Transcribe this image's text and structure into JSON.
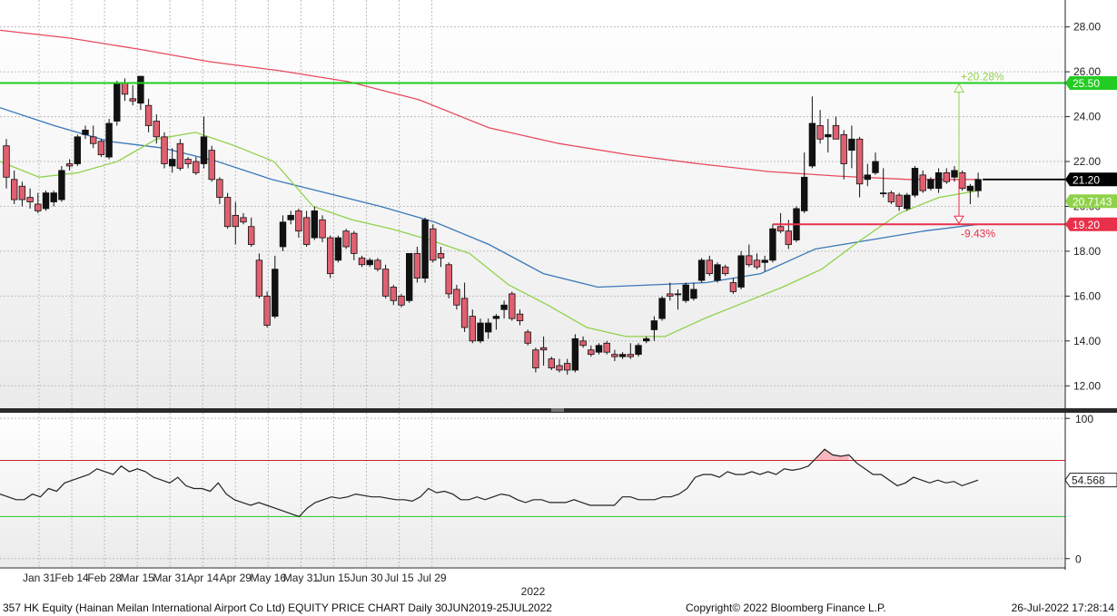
{
  "footer": {
    "description": "357 HK Equity (Hainan Meilan International Airport Co Ltd) EQUITY PRICE CHART  Daily 30JUN2019-25JUL2022",
    "copyright": "Copyright© 2022 Bloomberg Finance L.P.",
    "timestamp": "26-Jul-2022 17:28:14"
  },
  "colors": {
    "up_candle": "#111111",
    "down_candle": "#e06070",
    "ma_short": "#8fd24a",
    "ma_mid": "#3a78b8",
    "ma_long": "#e84a5f",
    "resistance": "#22cc22",
    "support": "#e8304a",
    "last_price": "#000000",
    "rsi_line": "#222222",
    "rsi_upper": "#cc2222",
    "rsi_lower": "#22cc22"
  },
  "chart_data": [
    {
      "type": "candlestick",
      "symbol": "357 HK Equity",
      "period": "Daily",
      "x_tick_labels": [
        "Jan 31",
        "Feb 14",
        "Feb 28",
        "Mar 15",
        "Mar 31",
        "Apr 14",
        "Apr 29",
        "May 16",
        "May 31",
        "Jun 15",
        "Jun 30",
        "Jul 15",
        "Jul 29"
      ],
      "year_label": "2022",
      "y_ticks": [
        "12.00",
        "14.00",
        "16.00",
        "18.00",
        "20.00",
        "22.00",
        "24.00",
        "26.00",
        "28.00"
      ],
      "ylim": [
        11.0,
        29.2
      ],
      "grid": true,
      "candles": [
        {
          "o": 22.7,
          "h": 23.0,
          "l": 20.8,
          "c": 21.3
        },
        {
          "o": 21.2,
          "h": 21.6,
          "l": 20.1,
          "c": 20.3
        },
        {
          "o": 20.9,
          "h": 21.1,
          "l": 20.0,
          "c": 20.3
        },
        {
          "o": 20.4,
          "h": 20.8,
          "l": 19.9,
          "c": 20.2
        },
        {
          "o": 20.1,
          "h": 20.6,
          "l": 19.7,
          "c": 19.8
        },
        {
          "o": 19.9,
          "h": 20.7,
          "l": 19.8,
          "c": 20.6
        },
        {
          "o": 20.2,
          "h": 20.7,
          "l": 20.0,
          "c": 20.6
        },
        {
          "o": 20.3,
          "h": 21.8,
          "l": 20.2,
          "c": 21.6
        },
        {
          "o": 21.9,
          "h": 22.1,
          "l": 21.6,
          "c": 21.8
        },
        {
          "o": 21.9,
          "h": 23.2,
          "l": 21.8,
          "c": 23.1
        },
        {
          "o": 23.2,
          "h": 23.6,
          "l": 23.0,
          "c": 23.4
        },
        {
          "o": 23.1,
          "h": 23.6,
          "l": 22.6,
          "c": 22.8
        },
        {
          "o": 22.9,
          "h": 23.0,
          "l": 22.2,
          "c": 22.3
        },
        {
          "o": 22.2,
          "h": 23.9,
          "l": 22.1,
          "c": 23.7
        },
        {
          "o": 23.8,
          "h": 25.6,
          "l": 23.6,
          "c": 25.5
        },
        {
          "o": 25.5,
          "h": 25.7,
          "l": 24.7,
          "c": 25.0
        },
        {
          "o": 24.8,
          "h": 25.4,
          "l": 24.5,
          "c": 24.7
        },
        {
          "o": 24.6,
          "h": 25.8,
          "l": 24.3,
          "c": 25.8
        },
        {
          "o": 24.5,
          "h": 24.8,
          "l": 23.3,
          "c": 23.6
        },
        {
          "o": 23.8,
          "h": 24.1,
          "l": 22.8,
          "c": 23.1
        },
        {
          "o": 23.1,
          "h": 23.3,
          "l": 21.7,
          "c": 21.9
        },
        {
          "o": 21.8,
          "h": 22.6,
          "l": 21.5,
          "c": 22.1
        },
        {
          "o": 22.8,
          "h": 23.0,
          "l": 21.6,
          "c": 21.7
        },
        {
          "o": 22.1,
          "h": 22.2,
          "l": 21.7,
          "c": 21.9
        },
        {
          "o": 22.0,
          "h": 22.2,
          "l": 21.4,
          "c": 21.5
        },
        {
          "o": 21.9,
          "h": 24.0,
          "l": 21.7,
          "c": 23.1
        },
        {
          "o": 22.5,
          "h": 22.7,
          "l": 21.1,
          "c": 21.2
        },
        {
          "o": 21.2,
          "h": 21.3,
          "l": 20.1,
          "c": 20.4
        },
        {
          "o": 20.4,
          "h": 20.6,
          "l": 19.0,
          "c": 19.1
        },
        {
          "o": 19.6,
          "h": 20.2,
          "l": 18.3,
          "c": 19.1
        },
        {
          "o": 19.5,
          "h": 19.7,
          "l": 19.2,
          "c": 19.3
        },
        {
          "o": 19.1,
          "h": 19.5,
          "l": 18.2,
          "c": 18.3
        },
        {
          "o": 17.6,
          "h": 17.9,
          "l": 15.9,
          "c": 16.0
        },
        {
          "o": 16.0,
          "h": 16.2,
          "l": 14.6,
          "c": 14.7
        },
        {
          "o": 15.1,
          "h": 17.8,
          "l": 15.0,
          "c": 17.2
        },
        {
          "o": 18.2,
          "h": 19.6,
          "l": 18.0,
          "c": 19.3
        },
        {
          "o": 19.4,
          "h": 19.8,
          "l": 19.2,
          "c": 19.6
        },
        {
          "o": 19.8,
          "h": 19.9,
          "l": 18.6,
          "c": 18.9
        },
        {
          "o": 19.5,
          "h": 19.8,
          "l": 18.2,
          "c": 18.3
        },
        {
          "o": 18.6,
          "h": 20.0,
          "l": 18.5,
          "c": 19.8
        },
        {
          "o": 19.4,
          "h": 19.6,
          "l": 18.4,
          "c": 18.6
        },
        {
          "o": 18.6,
          "h": 18.7,
          "l": 16.8,
          "c": 17.0
        },
        {
          "o": 17.6,
          "h": 18.7,
          "l": 17.5,
          "c": 18.6
        },
        {
          "o": 18.9,
          "h": 19.0,
          "l": 18.1,
          "c": 18.2
        },
        {
          "o": 18.8,
          "h": 18.9,
          "l": 17.6,
          "c": 17.9
        },
        {
          "o": 17.7,
          "h": 17.8,
          "l": 17.3,
          "c": 17.4
        },
        {
          "o": 17.4,
          "h": 17.7,
          "l": 17.3,
          "c": 17.6
        },
        {
          "o": 17.6,
          "h": 17.7,
          "l": 17.1,
          "c": 17.2
        },
        {
          "o": 17.2,
          "h": 17.4,
          "l": 15.9,
          "c": 16.0
        },
        {
          "o": 16.4,
          "h": 16.5,
          "l": 15.6,
          "c": 15.8
        },
        {
          "o": 16.0,
          "h": 16.1,
          "l": 15.5,
          "c": 15.6
        },
        {
          "o": 15.8,
          "h": 17.9,
          "l": 15.7,
          "c": 17.9
        },
        {
          "o": 17.9,
          "h": 18.2,
          "l": 16.6,
          "c": 16.8
        },
        {
          "o": 16.8,
          "h": 19.5,
          "l": 16.6,
          "c": 19.4
        },
        {
          "o": 19.0,
          "h": 19.2,
          "l": 17.5,
          "c": 17.6
        },
        {
          "o": 17.9,
          "h": 18.2,
          "l": 17.3,
          "c": 17.7
        },
        {
          "o": 17.4,
          "h": 17.5,
          "l": 15.9,
          "c": 16.1
        },
        {
          "o": 16.3,
          "h": 16.5,
          "l": 15.4,
          "c": 15.6
        },
        {
          "o": 15.9,
          "h": 16.6,
          "l": 14.4,
          "c": 14.6
        },
        {
          "o": 15.1,
          "h": 15.4,
          "l": 13.9,
          "c": 14.0
        },
        {
          "o": 14.0,
          "h": 15.0,
          "l": 13.9,
          "c": 14.8
        },
        {
          "o": 14.4,
          "h": 15.0,
          "l": 14.1,
          "c": 14.8
        },
        {
          "o": 15.0,
          "h": 15.2,
          "l": 14.5,
          "c": 15.1
        },
        {
          "o": 15.4,
          "h": 15.8,
          "l": 15.0,
          "c": 15.6
        },
        {
          "o": 16.1,
          "h": 16.2,
          "l": 14.9,
          "c": 15.0
        },
        {
          "o": 15.2,
          "h": 15.4,
          "l": 14.7,
          "c": 14.9
        },
        {
          "o": 14.4,
          "h": 14.5,
          "l": 13.8,
          "c": 13.9
        },
        {
          "o": 13.6,
          "h": 13.7,
          "l": 12.6,
          "c": 12.8
        },
        {
          "o": 13.7,
          "h": 14.2,
          "l": 12.9,
          "c": 13.6
        },
        {
          "o": 13.2,
          "h": 13.3,
          "l": 12.7,
          "c": 12.8
        },
        {
          "o": 12.9,
          "h": 13.2,
          "l": 12.6,
          "c": 12.7
        },
        {
          "o": 13.0,
          "h": 13.2,
          "l": 12.5,
          "c": 12.7
        },
        {
          "o": 12.7,
          "h": 14.3,
          "l": 12.6,
          "c": 14.1
        },
        {
          "o": 14.0,
          "h": 14.2,
          "l": 13.7,
          "c": 13.8
        },
        {
          "o": 13.6,
          "h": 13.8,
          "l": 13.3,
          "c": 13.4
        },
        {
          "o": 13.5,
          "h": 13.9,
          "l": 13.4,
          "c": 13.8
        },
        {
          "o": 13.9,
          "h": 14.0,
          "l": 13.4,
          "c": 13.5
        },
        {
          "o": 13.4,
          "h": 13.6,
          "l": 13.1,
          "c": 13.3
        },
        {
          "o": 13.3,
          "h": 13.5,
          "l": 13.2,
          "c": 13.4
        },
        {
          "o": 13.4,
          "h": 13.9,
          "l": 13.2,
          "c": 13.3
        },
        {
          "o": 13.4,
          "h": 13.9,
          "l": 13.3,
          "c": 13.8
        },
        {
          "o": 14.0,
          "h": 14.2,
          "l": 13.9,
          "c": 14.1
        },
        {
          "o": 14.5,
          "h": 15.1,
          "l": 14.0,
          "c": 14.9
        },
        {
          "o": 15.0,
          "h": 16.0,
          "l": 14.9,
          "c": 15.9
        },
        {
          "o": 16.1,
          "h": 16.6,
          "l": 15.8,
          "c": 16.0
        },
        {
          "o": 16.1,
          "h": 16.3,
          "l": 15.4,
          "c": 16.1
        },
        {
          "o": 15.8,
          "h": 16.6,
          "l": 15.7,
          "c": 16.5
        },
        {
          "o": 15.9,
          "h": 16.6,
          "l": 15.8,
          "c": 16.3
        },
        {
          "o": 16.7,
          "h": 17.7,
          "l": 16.6,
          "c": 17.6
        },
        {
          "o": 17.6,
          "h": 17.8,
          "l": 16.9,
          "c": 17.0
        },
        {
          "o": 16.7,
          "h": 17.5,
          "l": 16.6,
          "c": 17.4
        },
        {
          "o": 17.3,
          "h": 17.4,
          "l": 16.9,
          "c": 17.0
        },
        {
          "o": 16.6,
          "h": 16.8,
          "l": 16.1,
          "c": 16.2
        },
        {
          "o": 16.4,
          "h": 18.0,
          "l": 16.3,
          "c": 17.8
        },
        {
          "o": 17.8,
          "h": 18.3,
          "l": 17.3,
          "c": 17.4
        },
        {
          "o": 17.6,
          "h": 17.9,
          "l": 17.2,
          "c": 17.3
        },
        {
          "o": 17.5,
          "h": 17.8,
          "l": 17.1,
          "c": 17.6
        },
        {
          "o": 17.6,
          "h": 19.2,
          "l": 17.5,
          "c": 19.0
        },
        {
          "o": 19.1,
          "h": 19.7,
          "l": 18.8,
          "c": 18.9
        },
        {
          "o": 18.9,
          "h": 19.4,
          "l": 18.1,
          "c": 18.3
        },
        {
          "o": 18.5,
          "h": 20.0,
          "l": 18.4,
          "c": 19.9
        },
        {
          "o": 19.8,
          "h": 22.4,
          "l": 19.7,
          "c": 21.3
        },
        {
          "o": 21.8,
          "h": 24.9,
          "l": 21.7,
          "c": 23.7
        },
        {
          "o": 23.6,
          "h": 24.3,
          "l": 22.8,
          "c": 23.0
        },
        {
          "o": 23.1,
          "h": 23.9,
          "l": 22.4,
          "c": 23.2
        },
        {
          "o": 23.6,
          "h": 24.0,
          "l": 23.0,
          "c": 23.0
        },
        {
          "o": 23.2,
          "h": 23.4,
          "l": 21.2,
          "c": 21.9
        },
        {
          "o": 22.5,
          "h": 23.6,
          "l": 21.7,
          "c": 23.0
        },
        {
          "o": 23.0,
          "h": 23.1,
          "l": 20.4,
          "c": 21.0
        },
        {
          "o": 21.2,
          "h": 21.9,
          "l": 20.9,
          "c": 21.4
        },
        {
          "o": 21.5,
          "h": 22.4,
          "l": 21.4,
          "c": 22.0
        },
        {
          "o": 20.6,
          "h": 21.7,
          "l": 20.4,
          "c": 20.6
        },
        {
          "o": 20.6,
          "h": 20.7,
          "l": 20.1,
          "c": 20.2
        },
        {
          "o": 20.5,
          "h": 20.6,
          "l": 19.8,
          "c": 20.0
        },
        {
          "o": 19.9,
          "h": 20.6,
          "l": 19.8,
          "c": 20.5
        },
        {
          "o": 20.5,
          "h": 21.8,
          "l": 20.4,
          "c": 21.7
        },
        {
          "o": 21.4,
          "h": 21.6,
          "l": 20.6,
          "c": 20.7
        },
        {
          "o": 20.8,
          "h": 21.3,
          "l": 20.7,
          "c": 21.2
        },
        {
          "o": 20.8,
          "h": 21.7,
          "l": 20.6,
          "c": 21.5
        },
        {
          "o": 21.5,
          "h": 21.7,
          "l": 21.0,
          "c": 21.1
        },
        {
          "o": 21.3,
          "h": 21.8,
          "l": 21.1,
          "c": 21.6
        },
        {
          "o": 21.5,
          "h": 21.6,
          "l": 20.7,
          "c": 20.8
        },
        {
          "o": 20.7,
          "h": 21.0,
          "l": 20.1,
          "c": 20.9
        },
        {
          "o": 20.7,
          "h": 21.5,
          "l": 20.4,
          "c": 21.2
        }
      ],
      "moving_averages": [
        {
          "color_key": "ma_long",
          "values": [
            27.85,
            27.5,
            27.0,
            26.45,
            26.05,
            25.55,
            24.75,
            23.5,
            22.8,
            22.3,
            21.9,
            21.55,
            21.35,
            21.2,
            21.2
          ]
        },
        {
          "color_key": "ma_mid",
          "values": [
            24.4,
            23.6,
            22.9,
            22.6,
            22.0,
            21.2,
            20.6,
            20.0,
            19.3,
            18.3,
            17.0,
            16.4,
            16.5,
            16.6,
            17.0,
            18.1,
            18.5,
            18.9,
            19.2
          ]
        },
        {
          "color_key": "ma_short",
          "values": [
            22.0,
            21.3,
            21.5,
            22.0,
            23.0,
            23.3,
            22.7,
            22.0,
            20.0,
            19.4,
            19.0,
            18.5,
            17.9,
            16.5,
            15.6,
            14.6,
            14.2,
            14.2,
            15.0,
            15.7,
            16.4,
            17.2,
            18.5,
            19.7,
            20.4,
            20.7
          ]
        }
      ],
      "price_labels": [
        {
          "text": "25.50",
          "value": 25.5,
          "color_key": "resistance"
        },
        {
          "text": "21.20",
          "value": 21.2,
          "color_key": "last_price"
        },
        {
          "text": "20.7143",
          "value": 20.7143,
          "color_key": "ma_short"
        },
        {
          "text": "19.20",
          "value": 19.2,
          "color_key": "support"
        }
      ],
      "annotations": [
        {
          "text": "+20.28%",
          "color_key": "resistance"
        },
        {
          "text": "-9.43%",
          "color_key": "support"
        }
      ]
    },
    {
      "type": "line",
      "name": "RSI",
      "y_ticks": [
        "0",
        "100"
      ],
      "ylim": [
        -6,
        104
      ],
      "upper_level": 70,
      "lower_level": 30,
      "last_value_label": "54.568",
      "values": [
        46,
        44,
        42,
        42,
        46,
        44,
        50,
        48,
        54,
        56,
        58,
        60,
        64,
        62,
        60,
        66,
        62,
        64,
        62,
        58,
        56,
        54,
        58,
        52,
        50,
        50,
        48,
        54,
        46,
        42,
        40,
        38,
        40,
        38,
        36,
        34,
        32,
        30,
        36,
        40,
        42,
        44,
        43,
        44,
        46,
        45,
        44,
        44,
        43,
        42,
        42,
        41,
        44,
        50,
        47,
        48,
        46,
        42,
        42,
        44,
        42,
        44,
        46,
        45,
        42,
        40,
        42,
        42,
        40,
        40,
        40,
        42,
        40,
        38,
        38,
        38,
        38,
        44,
        44,
        42,
        42,
        42,
        44,
        44,
        46,
        50,
        58,
        60,
        60,
        58,
        62,
        60,
        60,
        62,
        60,
        62,
        60,
        64,
        63,
        64,
        66,
        72,
        78,
        74,
        73,
        74,
        68,
        64,
        60,
        60,
        56,
        52,
        54,
        58,
        56,
        54,
        56,
        54,
        55,
        52,
        54,
        56
      ]
    }
  ]
}
